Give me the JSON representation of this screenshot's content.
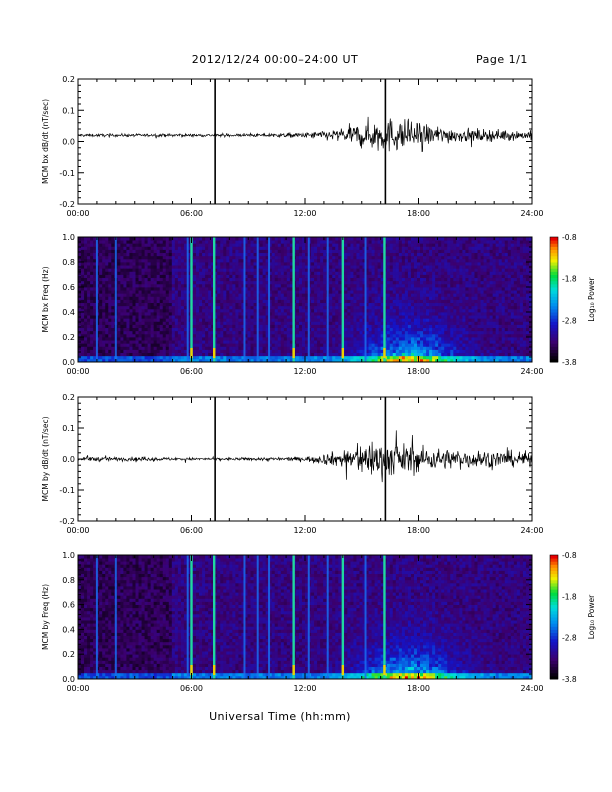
{
  "page": {
    "title": "2012/12/24  00:00–24:00 UT",
    "page_label": "Page 1/1",
    "xlabel": "Universal Time (hh:mm)"
  },
  "chart_data": [
    {
      "type": "line",
      "ylabel": "MCM bx dB/dt (nT/sec)",
      "x_ticks": [
        "00:00",
        "06:00",
        "12:00",
        "18:00",
        "24:00"
      ],
      "xlim": [
        0,
        24
      ],
      "ylim": [
        -0.2,
        0.2
      ],
      "y_ticks": [
        "-0.2",
        "-0.1",
        "0.0",
        "0.1",
        "0.2"
      ],
      "y_tick_values": [
        -0.2,
        -0.1,
        0.0,
        0.1,
        0.2
      ],
      "baseline": 0.02,
      "spikes": [
        {
          "x": 7.25,
          "ymin": -0.2,
          "ymax": 0.2
        },
        {
          "x": 16.25,
          "ymin": -0.2,
          "ymax": 0.2
        }
      ],
      "activity_envelope": [
        {
          "x": 0,
          "amp": 0.008
        },
        {
          "x": 9,
          "amp": 0.008
        },
        {
          "x": 12,
          "amp": 0.015
        },
        {
          "x": 14,
          "amp": 0.04
        },
        {
          "x": 15.5,
          "amp": 0.09
        },
        {
          "x": 16.5,
          "amp": 0.1
        },
        {
          "x": 18,
          "amp": 0.07
        },
        {
          "x": 20,
          "amp": 0.04
        },
        {
          "x": 24,
          "amp": 0.025
        }
      ]
    },
    {
      "type": "heatmap",
      "ylabel": "MCM bx Freq (Hz)",
      "colorbar_label": "Log₁₀ Power",
      "colorbar_ticks": [
        "-0.8",
        "-1.8",
        "-2.8",
        "-3.8"
      ],
      "x_ticks": [
        "00:00",
        "06:00",
        "12:00",
        "18:00",
        "24:00"
      ],
      "xlim": [
        0,
        24
      ],
      "ylim": [
        0,
        1.0
      ],
      "y_ticks": [
        "0.0",
        "0.2",
        "0.4",
        "0.6",
        "0.8",
        "1.0"
      ],
      "y_tick_values": [
        0.0,
        0.2,
        0.4,
        0.6,
        0.8,
        1.0
      ],
      "zlim": [
        -3.8,
        -0.8
      ],
      "bright_lines": [
        6.0,
        7.2,
        11.4,
        14.0,
        16.2
      ],
      "medium_lines": [
        1.0,
        2.0,
        5.8,
        8.8,
        9.5,
        10.1,
        12.2,
        13.2,
        15.2
      ]
    },
    {
      "type": "line",
      "ylabel": "MCM by dB/dt (nT/sec)",
      "x_ticks": [
        "00:00",
        "06:00",
        "12:00",
        "18:00",
        "24:00"
      ],
      "xlim": [
        0,
        24
      ],
      "ylim": [
        -0.2,
        0.2
      ],
      "y_ticks": [
        "-0.2",
        "-0.1",
        "0.0",
        "0.1",
        "0.2"
      ],
      "y_tick_values": [
        -0.2,
        -0.1,
        0.0,
        0.1,
        0.2
      ],
      "baseline": 0.0,
      "spikes": [
        {
          "x": 7.25,
          "ymin": -0.2,
          "ymax": 0.2
        },
        {
          "x": 16.25,
          "ymin": -0.2,
          "ymax": 0.2
        }
      ],
      "activity_envelope": [
        {
          "x": 0,
          "amp": 0.015
        },
        {
          "x": 3.5,
          "amp": 0.01
        },
        {
          "x": 7,
          "amp": 0.007
        },
        {
          "x": 12,
          "amp": 0.012
        },
        {
          "x": 14,
          "amp": 0.05
        },
        {
          "x": 15.5,
          "amp": 0.11
        },
        {
          "x": 17,
          "amp": 0.09
        },
        {
          "x": 19,
          "amp": 0.06
        },
        {
          "x": 24,
          "amp": 0.04
        }
      ]
    },
    {
      "type": "heatmap",
      "ylabel": "MCM by Freq (Hz)",
      "colorbar_label": "Log₁₀ Power",
      "colorbar_ticks": [
        "-0.8",
        "-1.8",
        "-2.8",
        "-3.8"
      ],
      "x_ticks": [
        "00:00",
        "06:00",
        "12:00",
        "18:00",
        "24:00"
      ],
      "xlim": [
        0,
        24
      ],
      "ylim": [
        0,
        1.0
      ],
      "y_ticks": [
        "0.0",
        "0.2",
        "0.4",
        "0.6",
        "0.8",
        "1.0"
      ],
      "y_tick_values": [
        0.0,
        0.2,
        0.4,
        0.6,
        0.8,
        1.0
      ],
      "zlim": [
        -3.8,
        -0.8
      ],
      "bright_lines": [
        6.0,
        7.2,
        11.4,
        14.0,
        16.2
      ],
      "medium_lines": [
        1.0,
        2.0,
        5.8,
        8.8,
        9.5,
        10.1,
        12.2,
        13.2,
        15.2
      ]
    }
  ]
}
